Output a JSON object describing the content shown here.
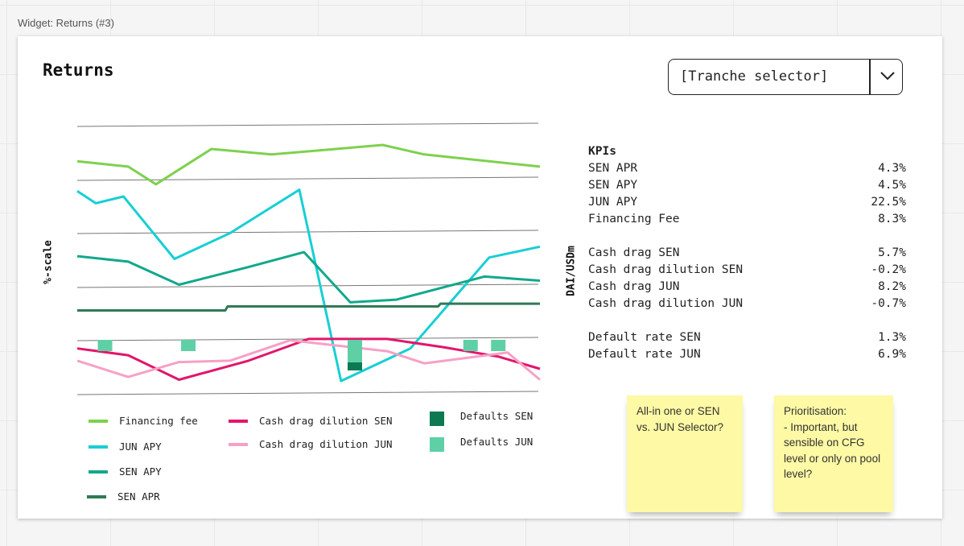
{
  "widget_label": "Widget: Returns (#3)",
  "card": {
    "title": "Returns",
    "selector": {
      "label": "[Tranche selector]",
      "icon": "chevron-down-icon"
    }
  },
  "chart_data": {
    "type": "line",
    "title": "",
    "ylabel": "%-scale",
    "y2label": "DAI/USDm",
    "grid": true,
    "series": [
      {
        "name": "Financing fee",
        "color": "#7ed14e",
        "style": "line",
        "points": [
          [
            0.0,
            0.86
          ],
          [
            0.11,
            0.84
          ],
          [
            0.17,
            0.775
          ],
          [
            0.29,
            0.905
          ],
          [
            0.42,
            0.885
          ],
          [
            0.66,
            0.92
          ],
          [
            0.75,
            0.885
          ],
          [
            1.0,
            0.84
          ]
        ]
      },
      {
        "name": "JUN APY",
        "color": "#17cfd4",
        "style": "line",
        "points": [
          [
            0.0,
            0.75
          ],
          [
            0.04,
            0.705
          ],
          [
            0.1,
            0.73
          ],
          [
            0.21,
            0.5
          ],
          [
            0.33,
            0.595
          ],
          [
            0.48,
            0.755
          ],
          [
            0.57,
            0.05
          ],
          [
            0.72,
            0.17
          ],
          [
            0.89,
            0.505
          ],
          [
            1.0,
            0.545
          ]
        ]
      },
      {
        "name": "SEN APY",
        "color": "#12a88a",
        "style": "line",
        "points": [
          [
            0.0,
            0.51
          ],
          [
            0.11,
            0.49
          ],
          [
            0.22,
            0.405
          ],
          [
            0.37,
            0.47
          ],
          [
            0.49,
            0.525
          ],
          [
            0.59,
            0.34
          ],
          [
            0.69,
            0.35
          ],
          [
            0.88,
            0.435
          ],
          [
            1.0,
            0.42
          ]
        ]
      },
      {
        "name": "SEN APR",
        "color": "#2f7a55",
        "style": "line",
        "points": [
          [
            0.0,
            0.31
          ],
          [
            0.32,
            0.31
          ],
          [
            0.325,
            0.325
          ],
          [
            0.78,
            0.325
          ],
          [
            0.785,
            0.335
          ],
          [
            1.0,
            0.335
          ]
        ]
      },
      {
        "name": "Cash drag dilution SEN",
        "color": "#e2166b",
        "style": "line",
        "points": [
          [
            0.0,
            0.17
          ],
          [
            0.11,
            0.145
          ],
          [
            0.22,
            0.055
          ],
          [
            0.37,
            0.125
          ],
          [
            0.5,
            0.205
          ],
          [
            0.67,
            0.205
          ],
          [
            0.79,
            0.175
          ],
          [
            0.91,
            0.14
          ],
          [
            1.0,
            0.095
          ]
        ]
      },
      {
        "name": "Cash drag dilution JUN",
        "color": "#f6a1c6",
        "style": "line",
        "points": [
          [
            0.0,
            0.125
          ],
          [
            0.11,
            0.065
          ],
          [
            0.22,
            0.12
          ],
          [
            0.33,
            0.125
          ],
          [
            0.46,
            0.2
          ],
          [
            0.67,
            0.16
          ],
          [
            0.75,
            0.115
          ],
          [
            0.93,
            0.155
          ],
          [
            1.0,
            0.055
          ]
        ]
      }
    ],
    "bars": [
      {
        "name": "Defaults SEN",
        "color": "#0b7a52",
        "x": [
          0.6
        ]
      },
      {
        "name": "Defaults JUN",
        "color": "#5fd0a6",
        "x": [
          0.06,
          0.24,
          0.6,
          0.85,
          0.91
        ]
      }
    ],
    "legend": [
      {
        "name": "Financing fee",
        "color": "#7ed14e",
        "kind": "line"
      },
      {
        "name": "JUN APY",
        "color": "#17cfd4",
        "kind": "line"
      },
      {
        "name": "SEN APY",
        "color": "#12a88a",
        "kind": "line"
      },
      {
        "name": "SEN APR",
        "color": "#2f7a55",
        "kind": "line"
      },
      {
        "name": "Cash drag dilution SEN",
        "color": "#e2166b",
        "kind": "line"
      },
      {
        "name": "Cash drag dilution JUN",
        "color": "#f6a1c6",
        "kind": "line"
      },
      {
        "name": "Defaults SEN",
        "color": "#0b7a52",
        "kind": "square"
      },
      {
        "name": "Defaults JUN",
        "color": "#5fd0a6",
        "kind": "square"
      }
    ]
  },
  "kpis": {
    "title": "KPIs",
    "groups": [
      [
        {
          "label": "SEN APR",
          "value": "4.3%"
        },
        {
          "label": "SEN APY",
          "value": "4.5%"
        },
        {
          "label": "JUN APY",
          "value": "22.5%"
        },
        {
          "label": "Financing Fee",
          "value": "8.3%"
        }
      ],
      [
        {
          "label": "Cash drag SEN",
          "value": "5.7%"
        },
        {
          "label": "Cash drag dilution SEN",
          "value": "-0.2%"
        },
        {
          "label": "Cash drag JUN",
          "value": "8.2%"
        },
        {
          "label": "Cash drag dilution JUN",
          "value": "-0.7%"
        }
      ],
      [
        {
          "label": "Default rate SEN",
          "value": "1.3%"
        },
        {
          "label": "Default rate JUN",
          "value": "6.9%"
        }
      ]
    ]
  },
  "sticky_notes": [
    {
      "text": "All-in one or SEN vs. JUN Selector?"
    },
    {
      "text": "Prioritisation:\n- Important, but sensible on CFG level or only on pool level?"
    }
  ]
}
